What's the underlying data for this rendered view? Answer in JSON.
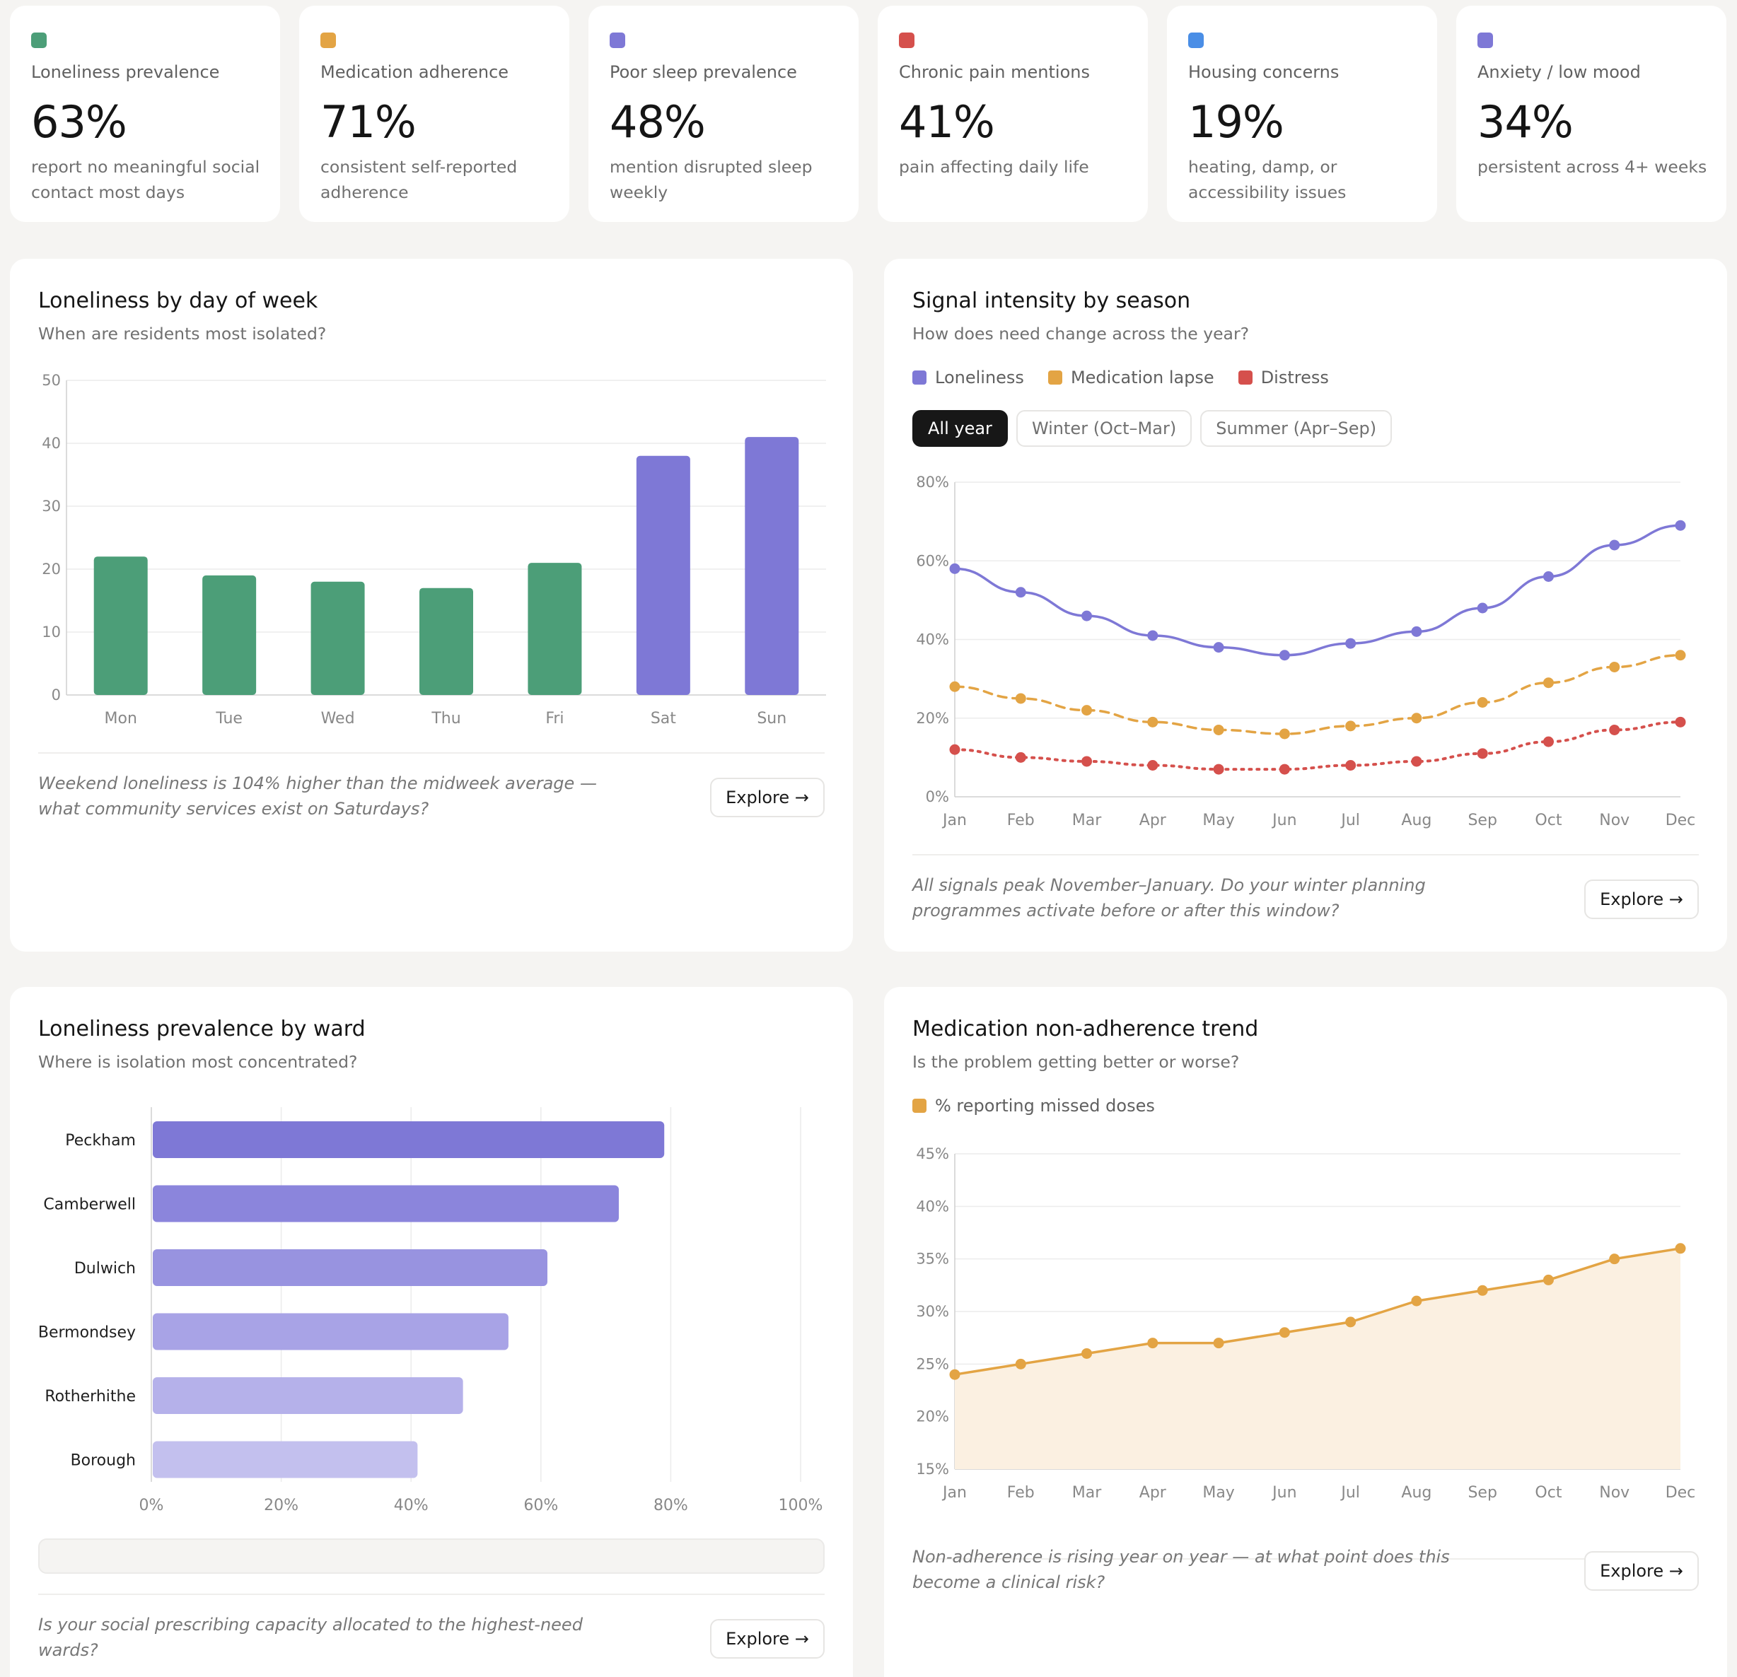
{
  "stats": [
    {
      "label": "Loneliness prevalence",
      "value": "63%",
      "desc": "report no meaningful social contact most days",
      "color": "#4c9e78"
    },
    {
      "label": "Medication adherence",
      "value": "71%",
      "desc": "consistent self-reported adherence",
      "color": "#e3a444"
    },
    {
      "label": "Poor sleep prevalence",
      "value": "48%",
      "desc": "mention disrupted sleep weekly",
      "color": "#7e78d6"
    },
    {
      "label": "Chronic pain mentions",
      "value": "41%",
      "desc": "pain affecting daily life",
      "color": "#d5504c"
    },
    {
      "label": "Housing concerns",
      "value": "19%",
      "desc": "heating, damp, or accessibility issues",
      "color": "#4a8ee6"
    },
    {
      "label": "Anxiety / low mood",
      "value": "34%",
      "desc": "persistent across 4+ weeks",
      "color": "#7e78d6"
    }
  ],
  "cards": {
    "day": {
      "title": "Loneliness by day of week",
      "subtitle": "When are residents most isolated?",
      "insight": "Weekend loneliness is 104% higher than the midweek average — what community services exist on Saturdays?",
      "explore": "Explore →"
    },
    "season": {
      "title": "Signal intensity by season",
      "subtitle": "How does need change across the year?",
      "insight": "All signals peak November–January. Do your winter planning programmes activate before or after this window?",
      "explore": "Explore →",
      "filters": [
        "All year",
        "Winter (Oct–Mar)",
        "Summer (Apr–Sep)"
      ]
    },
    "ward": {
      "title": "Loneliness prevalence by ward",
      "subtitle": "Where is isolation most concentrated?",
      "insight": "Is your social prescribing capacity allocated to the highest-need wards?",
      "explore": "Explore →"
    },
    "trend": {
      "title": "Medication non-adherence trend",
      "subtitle": "Is the problem getting better or worse?",
      "insight": "Non-adherence is rising year on year — at what point does this become a clinical risk?",
      "explore": "Explore →"
    }
  },
  "chart_data": [
    {
      "type": "bar",
      "categories": [
        "Mon",
        "Tue",
        "Wed",
        "Thu",
        "Fri",
        "Sat",
        "Sun"
      ],
      "values": [
        22,
        19,
        18,
        17,
        21,
        38,
        41
      ],
      "colors": [
        "#4c9e78",
        "#4c9e78",
        "#4c9e78",
        "#4c9e78",
        "#4c9e78",
        "#7e78d6",
        "#7e78d6"
      ],
      "yticks": [
        "0",
        "10",
        "20",
        "30",
        "40",
        "50"
      ],
      "ylim": [
        0,
        50
      ],
      "grid": true
    },
    {
      "type": "line",
      "x": [
        "Jan",
        "Feb",
        "Mar",
        "Apr",
        "May",
        "Jun",
        "Jul",
        "Aug",
        "Sep",
        "Oct",
        "Nov",
        "Dec"
      ],
      "series": [
        {
          "name": "Loneliness",
          "values": [
            58,
            52,
            46,
            41,
            38,
            36,
            39,
            42,
            48,
            56,
            64,
            69
          ],
          "color": "#7e78d6",
          "style": "solid"
        },
        {
          "name": "Medication lapse",
          "values": [
            28,
            25,
            22,
            19,
            17,
            16,
            18,
            20,
            24,
            29,
            33,
            36
          ],
          "color": "#e3a444",
          "style": "dashed"
        },
        {
          "name": "Distress",
          "values": [
            12,
            10,
            9,
            8,
            7,
            7,
            8,
            9,
            11,
            14,
            17,
            19
          ],
          "color": "#d5504c",
          "style": "dotted"
        }
      ],
      "yticks": [
        "0%",
        "20%",
        "40%",
        "60%",
        "80%"
      ],
      "ylim": [
        0,
        80
      ],
      "legend": "top-left",
      "grid": true
    },
    {
      "type": "bar",
      "orientation": "horizontal",
      "categories": [
        "Peckham",
        "Camberwell",
        "Dulwich",
        "Bermondsey",
        "Rotherhithe",
        "Borough"
      ],
      "values": [
        79,
        72,
        61,
        55,
        48,
        41
      ],
      "colors": [
        "#7e78d6",
        "#8b85dc",
        "#9893e0",
        "#a8a3e6",
        "#b5b1ea",
        "#c3c0ee"
      ],
      "xticks": [
        "0%",
        "20%",
        "40%",
        "60%",
        "80%",
        "100%"
      ],
      "xlim": [
        0,
        100
      ],
      "grid": true
    },
    {
      "type": "area",
      "x": [
        "Jan",
        "Feb",
        "Mar",
        "Apr",
        "May",
        "Jun",
        "Jul",
        "Aug",
        "Sep",
        "Oct",
        "Nov",
        "Dec"
      ],
      "series": [
        {
          "name": "% reporting missed doses",
          "values": [
            24,
            25,
            26,
            27,
            27,
            28,
            29,
            31,
            32,
            33,
            35,
            36
          ],
          "color": "#e3a444"
        }
      ],
      "yticks": [
        "15%",
        "20%",
        "25%",
        "30%",
        "35%",
        "40%",
        "45%"
      ],
      "ylim": [
        15,
        45
      ],
      "legend": "top-left",
      "grid": true
    }
  ]
}
